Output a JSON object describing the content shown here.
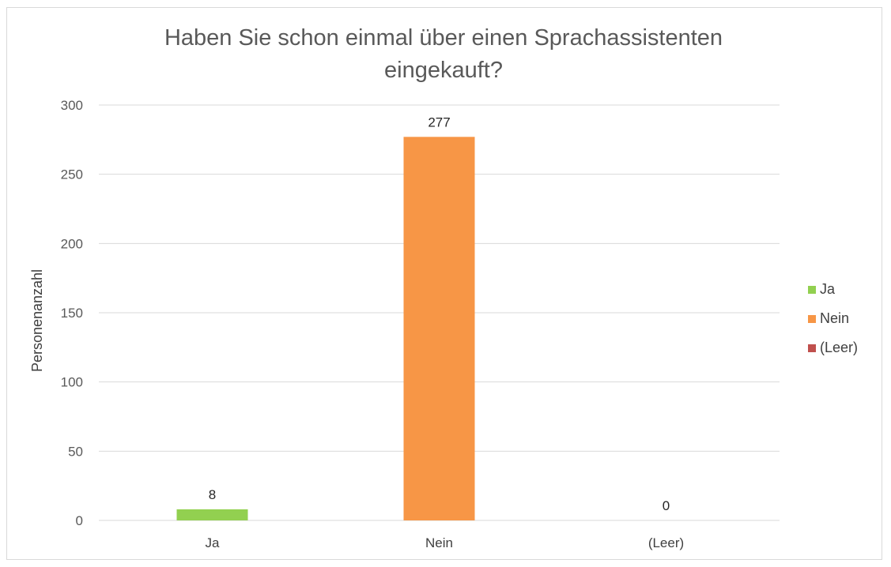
{
  "chart_data": {
    "type": "bar",
    "title_lines": [
      "Haben Sie schon einmal über einen Sprachassistenten",
      "eingekauft?"
    ],
    "ylabel": "Personenanzahl",
    "xlabel": "",
    "ylim": [
      0,
      300
    ],
    "yticks": [
      0,
      50,
      100,
      150,
      200,
      250,
      300
    ],
    "grid": true,
    "legend_position": "right",
    "categories": [
      "Ja",
      "Nein",
      "(Leer)"
    ],
    "values": [
      8,
      277,
      0
    ],
    "data_labels": [
      "8",
      "277",
      "0"
    ],
    "colors": [
      "#92d050",
      "#f79646",
      "#c0504d"
    ],
    "legend": [
      {
        "name": "Ja",
        "color": "#92d050"
      },
      {
        "name": "Nein",
        "color": "#f79646"
      },
      {
        "name": "(Leer)",
        "color": "#c0504d"
      }
    ]
  }
}
